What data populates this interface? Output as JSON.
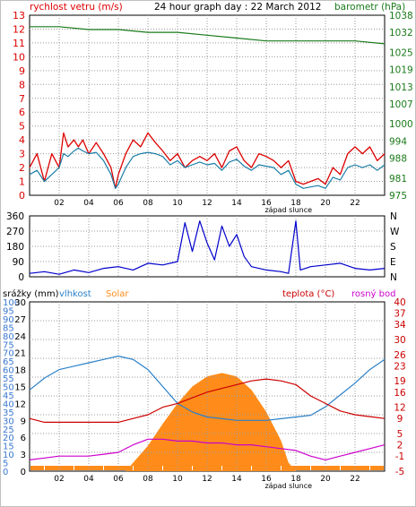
{
  "title": "24 hour graph day : 22 March 2012",
  "colors": {
    "wind": "#dd0000",
    "gust": "#1a7fa8",
    "pressure": "#1a7a1a",
    "direction": "#0000cc",
    "humidity": "#2a80c8",
    "solar": "#ff8c1a",
    "temperature": "#cc0000",
    "dewpoint": "#cc00cc",
    "rain": "#3a78d0",
    "grid": "#9a9a9a",
    "axis": "#000000"
  },
  "sunset_label": "západ slunce",
  "chart_data": [
    {
      "type": "line",
      "name": "wind-pressure",
      "left_label": "rychlost vetru (m/s)",
      "right_label": "barometr (hPa)",
      "left_ticks": [
        "0",
        "1",
        "2",
        "3",
        "4",
        "5",
        "6",
        "7",
        "8",
        "9",
        "10",
        "11",
        "12",
        "13"
      ],
      "right_ticks": [
        "975",
        "981",
        "988",
        "994",
        "1000",
        "1007",
        "1013",
        "1019",
        "1025",
        "1032",
        "1038"
      ],
      "right_tick_values": [
        975,
        981,
        988,
        994,
        1000,
        1007,
        1013,
        1019,
        1025,
        1032,
        1038
      ],
      "left_range": [
        0,
        13
      ],
      "right_range": [
        975,
        1038
      ],
      "x_ticks": [
        "02",
        "04",
        "06",
        "08",
        "10",
        "12",
        "14",
        "16",
        "18",
        "20",
        "22"
      ],
      "x_range": [
        0,
        24
      ],
      "series": [
        {
          "key": "wind",
          "points": [
            [
              0,
              2
            ],
            [
              0.5,
              3
            ],
            [
              1,
              1
            ],
            [
              1.5,
              3
            ],
            [
              2,
              2
            ],
            [
              2.3,
              4.5
            ],
            [
              2.6,
              3.5
            ],
            [
              3,
              4
            ],
            [
              3.3,
              3.5
            ],
            [
              3.6,
              4
            ],
            [
              4,
              3
            ],
            [
              4.5,
              3.8
            ],
            [
              5,
              3
            ],
            [
              5.5,
              2
            ],
            [
              5.8,
              0.5
            ],
            [
              6,
              1.5
            ],
            [
              6.5,
              3
            ],
            [
              7,
              4
            ],
            [
              7.5,
              3.5
            ],
            [
              8,
              4.5
            ],
            [
              8.5,
              3.8
            ],
            [
              9,
              3.2
            ],
            [
              9.5,
              2.5
            ],
            [
              10,
              3
            ],
            [
              10.5,
              2
            ],
            [
              11,
              2.5
            ],
            [
              11.5,
              2.8
            ],
            [
              12,
              2.5
            ],
            [
              12.5,
              3
            ],
            [
              13,
              2
            ],
            [
              13.5,
              3.2
            ],
            [
              14,
              3.5
            ],
            [
              14.5,
              2.5
            ],
            [
              15,
              2
            ],
            [
              15.5,
              3
            ],
            [
              16,
              2.8
            ],
            [
              16.5,
              2.5
            ],
            [
              17,
              2
            ],
            [
              17.5,
              2.5
            ],
            [
              18,
              1
            ],
            [
              18.5,
              0.8
            ],
            [
              19,
              1
            ],
            [
              19.5,
              1.2
            ],
            [
              20,
              0.8
            ],
            [
              20.5,
              2
            ],
            [
              21,
              1.5
            ],
            [
              21.5,
              3
            ],
            [
              22,
              3.5
            ],
            [
              22.5,
              3
            ],
            [
              23,
              3.5
            ],
            [
              23.5,
              2.5
            ],
            [
              24,
              3
            ]
          ]
        },
        {
          "key": "gust",
          "points": [
            [
              0,
              1.5
            ],
            [
              0.5,
              1.8
            ],
            [
              1,
              1
            ],
            [
              1.5,
              1.5
            ],
            [
              2,
              2
            ],
            [
              2.3,
              3
            ],
            [
              2.6,
              2.8
            ],
            [
              3,
              3.2
            ],
            [
              3.3,
              3.4
            ],
            [
              3.6,
              3.2
            ],
            [
              4,
              3
            ],
            [
              4.5,
              3.1
            ],
            [
              5,
              2.5
            ],
            [
              5.5,
              1.5
            ],
            [
              5.8,
              0.5
            ],
            [
              6,
              0.8
            ],
            [
              6.5,
              2
            ],
            [
              7,
              2.8
            ],
            [
              7.5,
              3
            ],
            [
              8,
              3.1
            ],
            [
              8.5,
              3
            ],
            [
              9,
              2.8
            ],
            [
              9.5,
              2.2
            ],
            [
              10,
              2.5
            ],
            [
              10.5,
              2
            ],
            [
              11,
              2.2
            ],
            [
              11.5,
              2.4
            ],
            [
              12,
              2.2
            ],
            [
              12.5,
              2.3
            ],
            [
              13,
              1.8
            ],
            [
              13.5,
              2.4
            ],
            [
              14,
              2.6
            ],
            [
              14.5,
              2.1
            ],
            [
              15,
              1.8
            ],
            [
              15.5,
              2.2
            ],
            [
              16,
              2.1
            ],
            [
              16.5,
              2
            ],
            [
              17,
              1.5
            ],
            [
              17.5,
              1.8
            ],
            [
              18,
              0.8
            ],
            [
              18.5,
              0.5
            ],
            [
              19,
              0.6
            ],
            [
              19.5,
              0.7
            ],
            [
              20,
              0.5
            ],
            [
              20.5,
              1.3
            ],
            [
              21,
              1.1
            ],
            [
              21.5,
              2
            ],
            [
              22,
              2.2
            ],
            [
              22.5,
              2
            ],
            [
              23,
              2.2
            ],
            [
              23.5,
              1.8
            ],
            [
              24,
              2.2
            ]
          ]
        },
        {
          "key": "pressure",
          "points": [
            [
              0,
              1034
            ],
            [
              2,
              1034
            ],
            [
              4,
              1033
            ],
            [
              6,
              1033
            ],
            [
              8,
              1032
            ],
            [
              10,
              1032
            ],
            [
              12,
              1031
            ],
            [
              14,
              1030
            ],
            [
              16,
              1029
            ],
            [
              18,
              1029
            ],
            [
              20,
              1029
            ],
            [
              22,
              1029
            ],
            [
              24,
              1028
            ]
          ]
        }
      ]
    },
    {
      "type": "line",
      "name": "wind-direction",
      "left_ticks": [
        "0",
        "90",
        "180",
        "270",
        "360"
      ],
      "left_tick_values": [
        0,
        90,
        180,
        270,
        360
      ],
      "right_ticks": [
        "N",
        "E",
        "S",
        "W",
        "N"
      ],
      "left_range": [
        0,
        360
      ],
      "series": [
        {
          "key": "direction",
          "points": [
            [
              0,
              20
            ],
            [
              1,
              30
            ],
            [
              2,
              15
            ],
            [
              3,
              40
            ],
            [
              4,
              25
            ],
            [
              5,
              50
            ],
            [
              6,
              60
            ],
            [
              7,
              40
            ],
            [
              8,
              80
            ],
            [
              9,
              70
            ],
            [
              10,
              90
            ],
            [
              10.5,
              320
            ],
            [
              11,
              150
            ],
            [
              11.5,
              330
            ],
            [
              12,
              200
            ],
            [
              12.5,
              100
            ],
            [
              13,
              300
            ],
            [
              13.5,
              180
            ],
            [
              14,
              250
            ],
            [
              14.5,
              120
            ],
            [
              15,
              60
            ],
            [
              16,
              40
            ],
            [
              17,
              30
            ],
            [
              17.5,
              20
            ],
            [
              18,
              330
            ],
            [
              18.3,
              40
            ],
            [
              19,
              60
            ],
            [
              20,
              70
            ],
            [
              21,
              80
            ],
            [
              22,
              50
            ],
            [
              23,
              40
            ],
            [
              24,
              50
            ]
          ]
        }
      ]
    },
    {
      "type": "line",
      "name": "temperature-humidity-solar",
      "labels": {
        "rain": "srážky (mm)",
        "humidity": "vlhkost",
        "solar": "Solar",
        "temperature": "teplota (°C)",
        "dewpoint": "rosný bod"
      },
      "rain_ticks": [
        "0",
        "5",
        "10",
        "15",
        "20",
        "25",
        "30",
        "35",
        "40",
        "45",
        "50",
        "55",
        "60",
        "65",
        "70",
        "75",
        "80",
        "85",
        "90",
        "95",
        "100"
      ],
      "humidity_ticks": [
        "0",
        "3",
        "6",
        "9",
        "12",
        "15",
        "18",
        "21",
        "24",
        "27",
        "30"
      ],
      "temp_ticks": [
        "-5",
        "-1",
        "2",
        "5",
        "9",
        "12",
        "16",
        "19",
        "23",
        "26",
        "30",
        "34",
        "37",
        "40"
      ],
      "temp_tick_values": [
        -5,
        -1,
        2,
        5,
        9,
        12,
        16,
        19,
        23,
        26,
        30,
        34,
        37,
        40
      ],
      "rain_range": [
        0,
        100
      ],
      "temp_range": [
        -5,
        40
      ],
      "humidity_range": [
        0,
        100
      ],
      "solar_max": 100,
      "series": [
        {
          "key": "humidity",
          "points": [
            [
              0,
              48
            ],
            [
              1,
              55
            ],
            [
              2,
              60
            ],
            [
              3,
              62
            ],
            [
              4,
              64
            ],
            [
              5,
              66
            ],
            [
              6,
              68
            ],
            [
              7,
              66
            ],
            [
              8,
              60
            ],
            [
              9,
              50
            ],
            [
              10,
              40
            ],
            [
              11,
              35
            ],
            [
              12,
              32
            ],
            [
              13,
              31
            ],
            [
              14,
              30
            ],
            [
              15,
              30
            ],
            [
              16,
              30
            ],
            [
              17,
              31
            ],
            [
              18,
              32
            ],
            [
              19,
              33
            ],
            [
              20,
              38
            ],
            [
              21,
              45
            ],
            [
              22,
              52
            ],
            [
              23,
              60
            ],
            [
              24,
              66
            ]
          ]
        },
        {
          "key": "temperature",
          "points": [
            [
              0,
              9
            ],
            [
              1,
              8
            ],
            [
              2,
              8
            ],
            [
              3,
              8
            ],
            [
              4,
              8
            ],
            [
              5,
              8
            ],
            [
              6,
              8
            ],
            [
              7,
              9
            ],
            [
              8,
              10
            ],
            [
              9,
              12
            ],
            [
              10,
              13
            ],
            [
              11,
              14.5
            ],
            [
              12,
              16
            ],
            [
              13,
              17
            ],
            [
              14,
              18
            ],
            [
              15,
              19
            ],
            [
              16,
              19.5
            ],
            [
              17,
              19
            ],
            [
              18,
              18
            ],
            [
              19,
              15
            ],
            [
              20,
              13
            ],
            [
              21,
              11
            ],
            [
              22,
              10
            ],
            [
              23,
              9.5
            ],
            [
              24,
              9
            ]
          ]
        },
        {
          "key": "dewpoint",
          "points": [
            [
              0,
              -2
            ],
            [
              1,
              -1.5
            ],
            [
              2,
              -1
            ],
            [
              3,
              -1
            ],
            [
              4,
              -1
            ],
            [
              5,
              -0.5
            ],
            [
              6,
              0
            ],
            [
              7,
              2
            ],
            [
              8,
              3.5
            ],
            [
              9,
              3.5
            ],
            [
              10,
              3
            ],
            [
              11,
              3
            ],
            [
              12,
              2.5
            ],
            [
              13,
              2.5
            ],
            [
              14,
              2
            ],
            [
              15,
              2
            ],
            [
              16,
              1.5
            ],
            [
              17,
              1
            ],
            [
              18,
              0.5
            ],
            [
              19,
              -1
            ],
            [
              20,
              -2
            ],
            [
              21,
              -1
            ],
            [
              22,
              0
            ],
            [
              23,
              1
            ],
            [
              24,
              2
            ]
          ]
        },
        {
          "key": "solar",
          "points": [
            [
              0,
              0
            ],
            [
              6.5,
              0
            ],
            [
              7,
              5
            ],
            [
              8,
              15
            ],
            [
              9,
              28
            ],
            [
              10,
              40
            ],
            [
              11,
              50
            ],
            [
              12,
              56
            ],
            [
              13,
              58
            ],
            [
              14,
              56
            ],
            [
              15,
              48
            ],
            [
              16,
              35
            ],
            [
              17,
              18
            ],
            [
              17.5,
              5
            ],
            [
              18,
              0
            ],
            [
              24,
              0
            ]
          ]
        },
        {
          "key": "rain",
          "points": [
            [
              0,
              0
            ],
            [
              24,
              0
            ]
          ]
        }
      ]
    }
  ]
}
